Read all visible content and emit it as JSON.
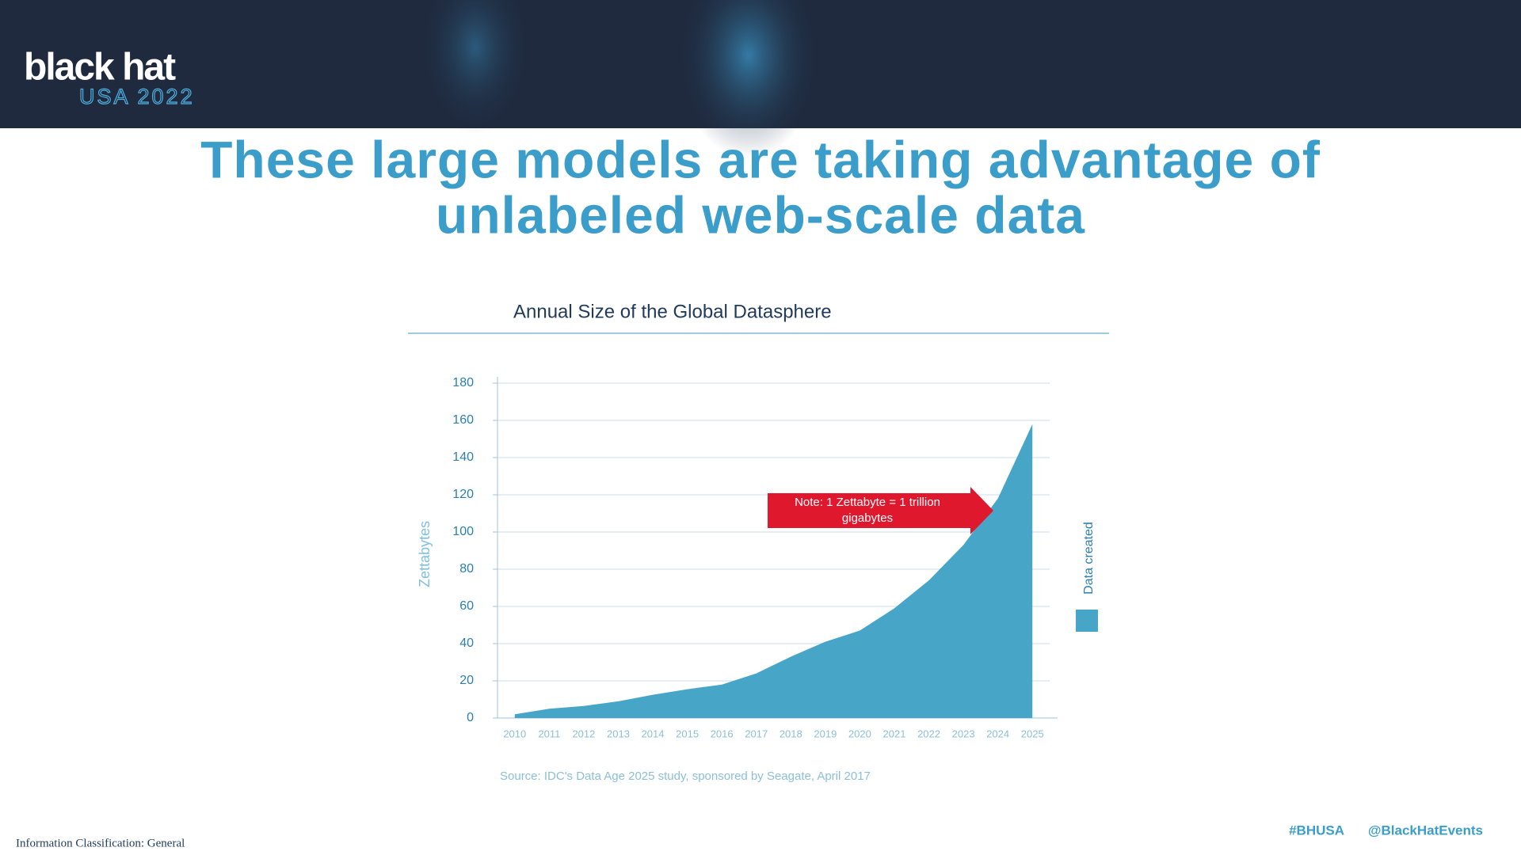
{
  "header": {
    "logo": "black hat",
    "event": "USA 2022"
  },
  "slide_title": [
    "These large models are taking advantage of",
    "unlabeled web-scale data"
  ],
  "footer": {
    "classification": "Information Classification: General",
    "hashtag": "#BHUSA",
    "handle": "@BlackHatEvents"
  },
  "chart_data": {
    "type": "area",
    "title": "Annual Size of the Global Datasphere",
    "y_label": "Zettabytes",
    "categories": [
      "2010",
      "2011",
      "2012",
      "2013",
      "2014",
      "2015",
      "2016",
      "2017",
      "2018",
      "2019",
      "2020",
      "2021",
      "2022",
      "2023",
      "2024",
      "2025"
    ],
    "series": [
      {
        "name": "Data created",
        "color": "#47a5c8",
        "values": [
          2,
          5,
          6.5,
          9,
          12.5,
          15.5,
          18,
          24,
          33,
          41,
          47,
          59,
          74,
          93,
          118,
          158
        ]
      }
    ],
    "ylim": [
      0,
      180
    ],
    "yticks": [
      0,
      20,
      40,
      60,
      80,
      100,
      120,
      140,
      160,
      180
    ],
    "grid": true,
    "annotation": "Note: 1 Zettabyte = 1 trillion gigabytes",
    "source": "Source: IDC's Data Age 2025 study, sponsored by Seagate, April 2017"
  }
}
